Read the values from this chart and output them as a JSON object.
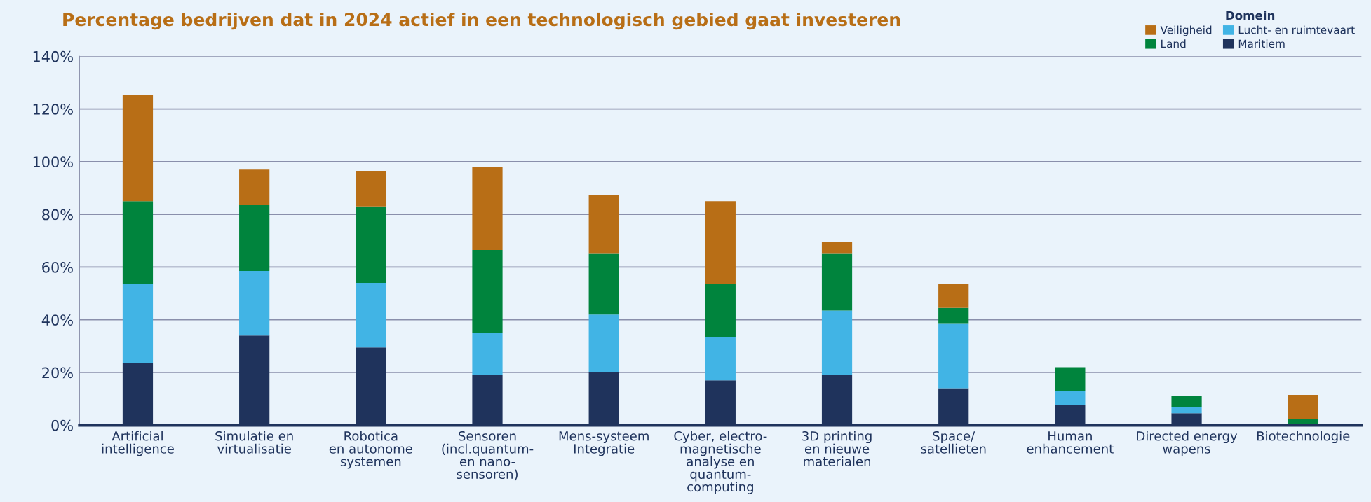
{
  "chart_data": {
    "type": "bar",
    "stacked": true,
    "title": "Percentage bedrijven dat in 2024 actief in een technologisch gebied gaat investeren",
    "categories": [
      "Artificial\nintelligence",
      "Simulatie en\nvirtualisatie",
      "Robotica\nen autonome\nsystemen",
      "Sensoren\n(incl.quantum-\nen nano-\nsensoren)",
      "Mens-systeem\nIntegratie",
      "Cyber, electro-\nmagnetische\nanalyse en\nquantum-\ncomputing",
      "3D printing\nen nieuwe\nmaterialen",
      "Space/\nsatellieten",
      "Human\nenhancement",
      "Directed energy\nwapens",
      "Biotechnologie"
    ],
    "series": [
      {
        "name": "Maritiem",
        "color": "#1f335c",
        "values": [
          23.5,
          34,
          29.5,
          19,
          20,
          17,
          19,
          14,
          7.5,
          4.5,
          0
        ]
      },
      {
        "name": "Lucht- en ruimtevaart",
        "color": "#41b4e5",
        "values": [
          30,
          24.5,
          24.5,
          16,
          22,
          16.5,
          24.5,
          24.5,
          5.5,
          2.5,
          0
        ]
      },
      {
        "name": "Land",
        "color": "#00843d",
        "values": [
          31.5,
          25,
          29,
          31.5,
          23,
          20,
          21.5,
          6,
          9,
          4,
          2.5
        ]
      },
      {
        "name": "Veiligheid",
        "color": "#b86e16",
        "values": [
          40.5,
          13.5,
          13.5,
          31.5,
          22.5,
          31.5,
          4.5,
          9,
          0,
          0,
          9
        ]
      }
    ],
    "ylim": [
      0,
      140
    ],
    "yticks": [
      {
        "value": 0,
        "label": "0%"
      },
      {
        "value": 20,
        "label": "20%"
      },
      {
        "value": 40,
        "label": "40%"
      },
      {
        "value": 60,
        "label": "60%"
      },
      {
        "value": 80,
        "label": "80%"
      },
      {
        "value": 100,
        "label": "100%"
      },
      {
        "value": 120,
        "label": "120%"
      },
      {
        "value": 140,
        "label": "140%"
      }
    ],
    "grid": "y",
    "legend": "top right",
    "legend_title": "Domein"
  }
}
